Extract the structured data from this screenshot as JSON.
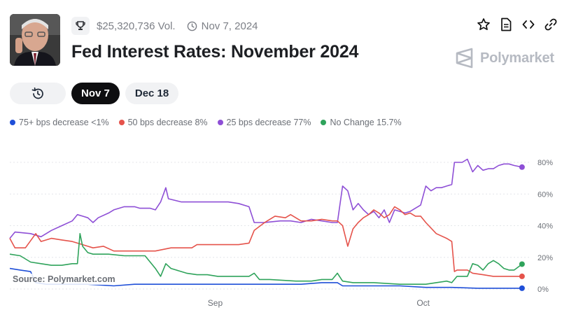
{
  "market": {
    "volume": "$25,320,736 Vol.",
    "date": "Nov 7, 2024",
    "title": "Fed Interest Rates: November 2024"
  },
  "brand": {
    "name": "Polymarket"
  },
  "icons": {
    "trophy": "trophy-icon",
    "clock": "clock-icon",
    "star": "star-icon",
    "document": "document-icon",
    "embed": "code-icon",
    "link": "link-icon",
    "history": "history-icon"
  },
  "tabs": [
    {
      "label": "Nov 7",
      "active": true
    },
    {
      "label": "Dec 18",
      "active": false
    }
  ],
  "legend": [
    {
      "label": "75+ bps decrease <1%",
      "color": "#1f4fd8"
    },
    {
      "label": "50 bps decrease 8%",
      "color": "#e5534b"
    },
    {
      "label": "25 bps decrease 77%",
      "color": "#8e4fd6"
    },
    {
      "label": "No Change 15.7%",
      "color": "#2fa35b"
    }
  ],
  "source": "Source: Polymarket.com",
  "chart_data": {
    "type": "line",
    "x_ticks": [
      "Sep",
      "Oct"
    ],
    "y_ticks": [
      "0%",
      "20%",
      "40%",
      "60%",
      "80%"
    ],
    "ylim": [
      0,
      80
    ],
    "grid": true,
    "legend_position": "top-left",
    "x_index_range": [
      0,
      1
    ],
    "x_tick_positions": [
      0.395,
      0.795
    ],
    "series": [
      {
        "name": "25 bps decrease",
        "color": "#8e4fd6",
        "points": [
          [
            0,
            32
          ],
          [
            0.01,
            36
          ],
          [
            0.04,
            35
          ],
          [
            0.06,
            33
          ],
          [
            0.08,
            37
          ],
          [
            0.1,
            40
          ],
          [
            0.12,
            43
          ],
          [
            0.13,
            47
          ],
          [
            0.14,
            46
          ],
          [
            0.15,
            45
          ],
          [
            0.16,
            42
          ],
          [
            0.17,
            45
          ],
          [
            0.19,
            48
          ],
          [
            0.2,
            50
          ],
          [
            0.22,
            52
          ],
          [
            0.24,
            52
          ],
          [
            0.25,
            51
          ],
          [
            0.27,
            51
          ],
          [
            0.28,
            50
          ],
          [
            0.29,
            55
          ],
          [
            0.3,
            64
          ],
          [
            0.305,
            57
          ],
          [
            0.33,
            55
          ],
          [
            0.38,
            55
          ],
          [
            0.42,
            55
          ],
          [
            0.44,
            54
          ],
          [
            0.46,
            52
          ],
          [
            0.47,
            42
          ],
          [
            0.49,
            42
          ],
          [
            0.52,
            43
          ],
          [
            0.54,
            43
          ],
          [
            0.56,
            42
          ],
          [
            0.58,
            44
          ],
          [
            0.6,
            43
          ],
          [
            0.62,
            42
          ],
          [
            0.63,
            42
          ],
          [
            0.64,
            65
          ],
          [
            0.65,
            62
          ],
          [
            0.66,
            50
          ],
          [
            0.67,
            54
          ],
          [
            0.68,
            50
          ],
          [
            0.69,
            47
          ],
          [
            0.7,
            49
          ],
          [
            0.71,
            45
          ],
          [
            0.72,
            50
          ],
          [
            0.73,
            42
          ],
          [
            0.74,
            50
          ],
          [
            0.75,
            49
          ],
          [
            0.76,
            48
          ],
          [
            0.77,
            49
          ],
          [
            0.78,
            51
          ],
          [
            0.79,
            53
          ],
          [
            0.8,
            65
          ],
          [
            0.81,
            62
          ],
          [
            0.82,
            64
          ],
          [
            0.83,
            64
          ],
          [
            0.84,
            65
          ],
          [
            0.85,
            66
          ],
          [
            0.855,
            80
          ],
          [
            0.87,
            80
          ],
          [
            0.88,
            82
          ],
          [
            0.89,
            74
          ],
          [
            0.9,
            78
          ],
          [
            0.91,
            75
          ],
          [
            0.92,
            76
          ],
          [
            0.93,
            76
          ],
          [
            0.94,
            78
          ],
          [
            0.95,
            79
          ],
          [
            0.96,
            79
          ],
          [
            0.97,
            78
          ],
          [
            0.985,
            77
          ]
        ]
      },
      {
        "name": "50 bps decrease",
        "color": "#e5534b",
        "points": [
          [
            0,
            32
          ],
          [
            0.01,
            26
          ],
          [
            0.03,
            26
          ],
          [
            0.05,
            35
          ],
          [
            0.06,
            30
          ],
          [
            0.08,
            32
          ],
          [
            0.1,
            31
          ],
          [
            0.12,
            30
          ],
          [
            0.14,
            28
          ],
          [
            0.16,
            26
          ],
          [
            0.18,
            27
          ],
          [
            0.2,
            24
          ],
          [
            0.22,
            24
          ],
          [
            0.25,
            24
          ],
          [
            0.28,
            24
          ],
          [
            0.31,
            26
          ],
          [
            0.33,
            26
          ],
          [
            0.35,
            26
          ],
          [
            0.36,
            28
          ],
          [
            0.38,
            28
          ],
          [
            0.41,
            28
          ],
          [
            0.44,
            28
          ],
          [
            0.46,
            29
          ],
          [
            0.47,
            37
          ],
          [
            0.49,
            42
          ],
          [
            0.51,
            46
          ],
          [
            0.53,
            45
          ],
          [
            0.54,
            47
          ],
          [
            0.56,
            43
          ],
          [
            0.58,
            43
          ],
          [
            0.6,
            44
          ],
          [
            0.62,
            43
          ],
          [
            0.63,
            43
          ],
          [
            0.64,
            40
          ],
          [
            0.65,
            27
          ],
          [
            0.66,
            38
          ],
          [
            0.67,
            42
          ],
          [
            0.68,
            45
          ],
          [
            0.69,
            47
          ],
          [
            0.7,
            50
          ],
          [
            0.71,
            48
          ],
          [
            0.72,
            45
          ],
          [
            0.73,
            47
          ],
          [
            0.74,
            52
          ],
          [
            0.75,
            50
          ],
          [
            0.76,
            47
          ],
          [
            0.77,
            48
          ],
          [
            0.78,
            46
          ],
          [
            0.79,
            46
          ],
          [
            0.8,
            42
          ],
          [
            0.82,
            35
          ],
          [
            0.84,
            32
          ],
          [
            0.85,
            30
          ],
          [
            0.855,
            11
          ],
          [
            0.86,
            12
          ],
          [
            0.88,
            12
          ],
          [
            0.89,
            10
          ],
          [
            0.91,
            9
          ],
          [
            0.93,
            8
          ],
          [
            0.95,
            8
          ],
          [
            0.97,
            8
          ],
          [
            0.985,
            8
          ]
        ]
      },
      {
        "name": "No Change",
        "color": "#2fa35b",
        "points": [
          [
            0,
            22
          ],
          [
            0.02,
            21
          ],
          [
            0.04,
            17
          ],
          [
            0.06,
            16
          ],
          [
            0.08,
            15
          ],
          [
            0.1,
            15
          ],
          [
            0.12,
            16
          ],
          [
            0.13,
            16
          ],
          [
            0.135,
            35
          ],
          [
            0.14,
            27
          ],
          [
            0.15,
            23
          ],
          [
            0.16,
            22
          ],
          [
            0.17,
            22
          ],
          [
            0.19,
            22
          ],
          [
            0.22,
            21
          ],
          [
            0.26,
            21
          ],
          [
            0.28,
            13
          ],
          [
            0.29,
            8
          ],
          [
            0.3,
            16
          ],
          [
            0.31,
            13
          ],
          [
            0.32,
            12
          ],
          [
            0.34,
            10
          ],
          [
            0.36,
            9
          ],
          [
            0.38,
            9
          ],
          [
            0.4,
            8
          ],
          [
            0.42,
            8
          ],
          [
            0.44,
            8
          ],
          [
            0.46,
            8
          ],
          [
            0.47,
            10
          ],
          [
            0.48,
            6
          ],
          [
            0.5,
            6
          ],
          [
            0.55,
            5
          ],
          [
            0.58,
            5
          ],
          [
            0.6,
            6
          ],
          [
            0.62,
            6
          ],
          [
            0.63,
            10
          ],
          [
            0.64,
            5
          ],
          [
            0.66,
            4
          ],
          [
            0.7,
            4
          ],
          [
            0.75,
            3
          ],
          [
            0.8,
            3
          ],
          [
            0.82,
            4
          ],
          [
            0.84,
            5
          ],
          [
            0.85,
            4
          ],
          [
            0.86,
            8
          ],
          [
            0.88,
            8
          ],
          [
            0.89,
            16
          ],
          [
            0.9,
            15
          ],
          [
            0.91,
            12
          ],
          [
            0.92,
            16
          ],
          [
            0.93,
            18
          ],
          [
            0.94,
            16
          ],
          [
            0.95,
            13
          ],
          [
            0.96,
            12
          ],
          [
            0.97,
            12
          ],
          [
            0.985,
            15.7
          ]
        ]
      },
      {
        "name": "75+ bps decrease",
        "color": "#1f4fd8",
        "points": [
          [
            0,
            13
          ],
          [
            0.02,
            12
          ],
          [
            0.04,
            11
          ],
          [
            0.05,
            4
          ],
          [
            0.07,
            3
          ],
          [
            0.1,
            3
          ],
          [
            0.15,
            3
          ],
          [
            0.2,
            2
          ],
          [
            0.24,
            3
          ],
          [
            0.28,
            3
          ],
          [
            0.32,
            3
          ],
          [
            0.36,
            3
          ],
          [
            0.4,
            3
          ],
          [
            0.44,
            3
          ],
          [
            0.48,
            3
          ],
          [
            0.52,
            3
          ],
          [
            0.56,
            3
          ],
          [
            0.6,
            4
          ],
          [
            0.63,
            4
          ],
          [
            0.64,
            2
          ],
          [
            0.66,
            2
          ],
          [
            0.7,
            2
          ],
          [
            0.75,
            2
          ],
          [
            0.8,
            1
          ],
          [
            0.85,
            1
          ],
          [
            0.9,
            0.5
          ],
          [
            0.95,
            0.5
          ],
          [
            0.985,
            0.5
          ]
        ]
      }
    ]
  }
}
